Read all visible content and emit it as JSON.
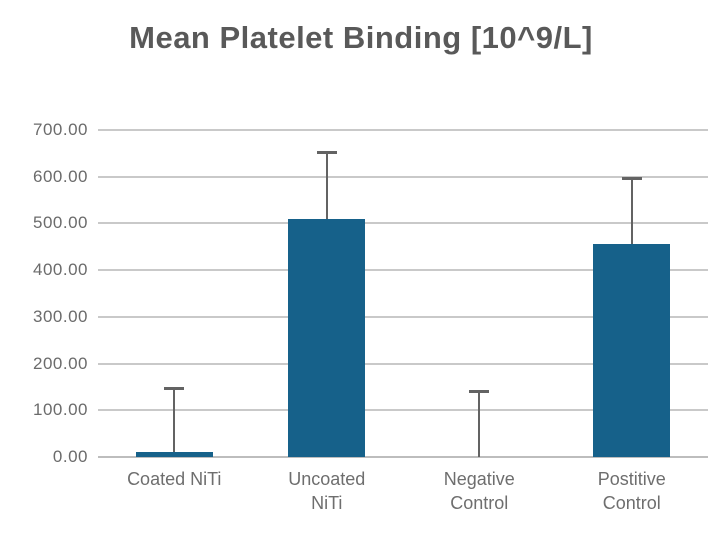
{
  "chart_data": {
    "type": "bar",
    "title": "Mean Platelet Binding [10^9/L]",
    "categories": [
      "Coated NiTi",
      "Uncoated NiTi",
      "Negative Control",
      "Postitive Control"
    ],
    "category_label_lines": [
      [
        "Coated NiTi"
      ],
      [
        "Uncoated",
        "NiTi"
      ],
      [
        "Negative",
        "Control"
      ],
      [
        "Postitive",
        "Control"
      ]
    ],
    "values": [
      10,
      510,
      0,
      455
    ],
    "error_whisker_top": [
      145,
      650,
      140,
      595
    ],
    "yticks": [
      0,
      100,
      200,
      300,
      400,
      500,
      600,
      700
    ],
    "ytick_labels": [
      "0.00",
      "100.00",
      "200.00",
      "300.00",
      "400.00",
      "500.00",
      "600.00",
      "700.00"
    ],
    "ylim": [
      0,
      700
    ],
    "xlabel": "",
    "ylabel": "",
    "grid": "horizontal",
    "legend": false
  },
  "colors": {
    "bar": "#16618a",
    "error_bar": "#636363",
    "gridline": "#c9c9c9",
    "baseline": "#bdbdbd",
    "title_text": "#595959",
    "axis_text": "#6b6b6b",
    "background": "#ffffff"
  }
}
